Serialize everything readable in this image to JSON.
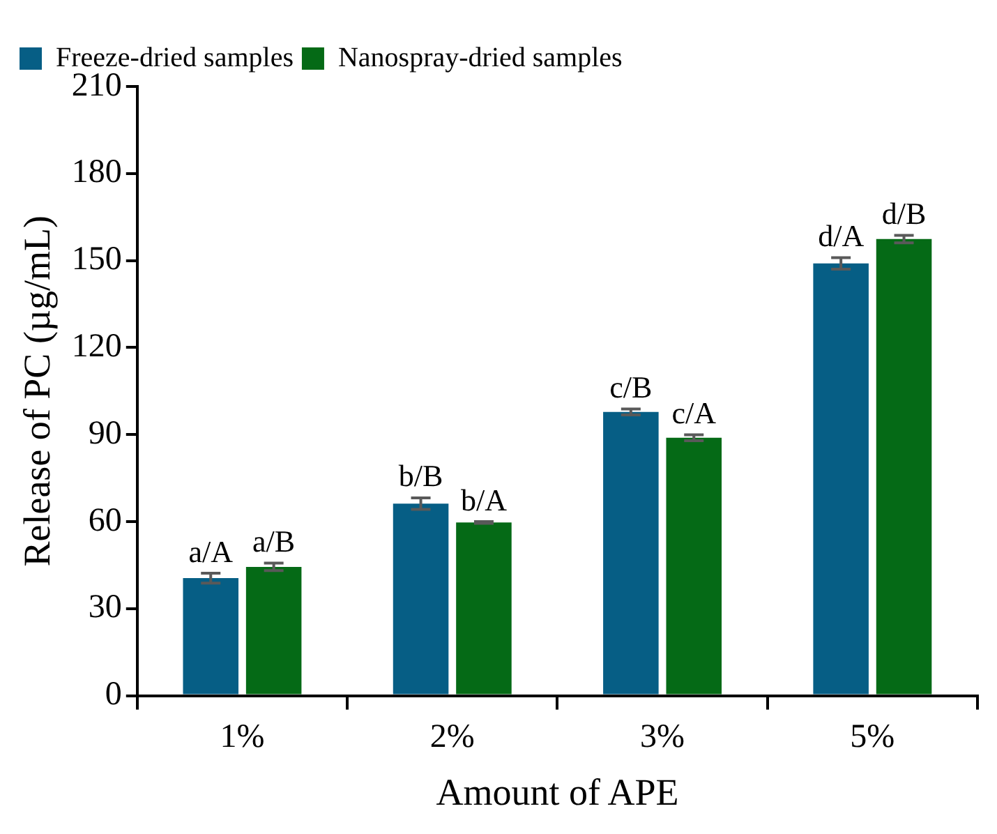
{
  "chart_data": {
    "type": "bar",
    "xlabel": "Amount of APE",
    "ylabel": "Release of PC (µg/mL)",
    "categories": [
      "1%",
      "2%",
      "3%",
      "5%"
    ],
    "series": [
      {
        "name": "Freeze-dried samples",
        "color": "#065e85",
        "values": [
          40.5,
          66.2,
          97.8,
          149
        ],
        "errors": [
          1.7,
          2,
          1,
          2
        ]
      },
      {
        "name": "Nanospray-dried samples",
        "color": "#056a16",
        "values": [
          44.4,
          59.7,
          88.9,
          157.4
        ],
        "errors": [
          1.3,
          0.3,
          1,
          1.3
        ]
      }
    ],
    "ylim": [
      0,
      210
    ],
    "yticks": [
      0,
      30,
      60,
      90,
      120,
      150,
      180,
      210
    ],
    "grid": false,
    "legend": "top left",
    "annotations": [
      {
        "text": "a/A",
        "x": "1%",
        "y": 42.2
      },
      {
        "text": "a/B",
        "x": "1%",
        "y": 45.7
      },
      {
        "text": "b/B",
        "x": "2%",
        "y": 68.2
      },
      {
        "text": "b/A",
        "x": "2%",
        "y": 60
      },
      {
        "text": "c/B",
        "x": "3%",
        "y": 98.8
      },
      {
        "text": "c/A",
        "x": "3%",
        "y": 89.9
      },
      {
        "text": "d/A",
        "x": "5%",
        "y": 151
      },
      {
        "text": "d/B",
        "x": "5%",
        "y": 158.7
      }
    ]
  }
}
